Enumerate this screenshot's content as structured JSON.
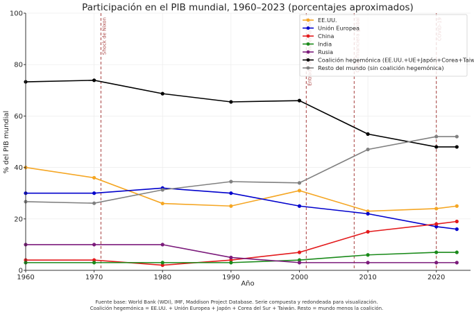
{
  "chart_data": {
    "type": "line",
    "title": "Participación en el PIB mundial, 1960–2023 (porcentajes aproximados)",
    "xlabel": "Año",
    "ylabel": "% del PIB mundial",
    "xlim": [
      1960,
      2025
    ],
    "ylim": [
      0,
      100
    ],
    "x_ticks": [
      1960,
      1970,
      1980,
      1990,
      2000,
      2010,
      2020
    ],
    "y_ticks": [
      0,
      20,
      40,
      60,
      80,
      100
    ],
    "grid": true,
    "legend_position": "top-right",
    "x": [
      1960,
      1970,
      1980,
      1990,
      2000,
      2010,
      2020,
      2023
    ],
    "series": [
      {
        "name": "EE.UU.",
        "color": "#f5a623",
        "values": [
          40,
          36,
          26,
          25,
          31,
          23,
          24,
          25
        ]
      },
      {
        "name": "Unión Europea",
        "color": "#0000cc",
        "values": [
          30,
          30,
          32,
          30,
          25,
          22,
          17,
          16
        ]
      },
      {
        "name": "China",
        "color": "#e31a1c",
        "values": [
          4,
          4,
          2,
          4,
          7,
          15,
          18,
          19
        ]
      },
      {
        "name": "India",
        "color": "#1a8a1a",
        "values": [
          3,
          3,
          3,
          3,
          4,
          6,
          7,
          7
        ]
      },
      {
        "name": "Rusia",
        "color": "#7b1a7b",
        "values": [
          10,
          10,
          10,
          5,
          3,
          3,
          3,
          3
        ]
      },
      {
        "name": "Coalición hegemónica (EE.UU.+UE+Japón+Corea+Taiwán)",
        "color": "#000000",
        "values": [
          73.3,
          73.9,
          68.7,
          65.5,
          66,
          53,
          48,
          48
        ]
      },
      {
        "name": "Resto del mundo (sin coalición hegemónica)",
        "color": "#808080",
        "values": [
          26.7,
          26.1,
          31.3,
          34.5,
          34,
          47,
          52,
          52
        ]
      }
    ],
    "events": [
      {
        "year": 1971,
        "label": "Shock de Nixon"
      },
      {
        "year": 2001,
        "label": "Entrada de China en la OMC"
      },
      {
        "year": 2008,
        "label": "Crisis financiera global"
      },
      {
        "year": 2020,
        "label": "COVID-19"
      }
    ],
    "event_color": "#a0302f",
    "footnote": [
      "Fuente base: World Bank (WDI), IMF, Maddison Project Database. Serie compuesta y redondeada para visualización.",
      "Coalición hegemónica = EE.UU. + Unión Europea + Japón + Corea del Sur + Taiwán. Resto = mundo menos la coalición."
    ]
  }
}
